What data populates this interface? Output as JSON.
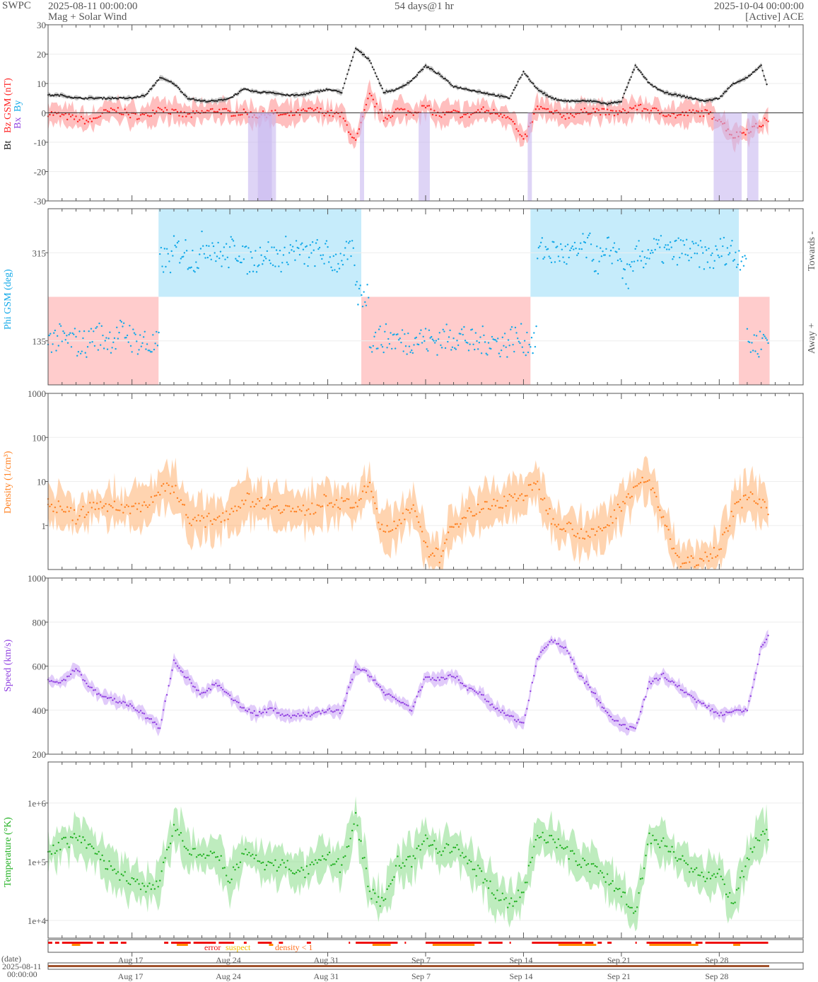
{
  "header": {
    "org": "SWPC",
    "start": "2025-08-11 00:00:00",
    "title": "Mag + Solar Wind",
    "span": "54 days@1 hr",
    "end": "2025-10-04 00:00:00",
    "source": "[Active] ACE"
  },
  "labels": {
    "bt": "Bt",
    "bz": "Bz GSM (nT)",
    "bx": "Bx",
    "by": "By",
    "phi": "Phi GSM (deg)",
    "towards": "Towards -",
    "away": "Away +",
    "density": "Density (1/cm³)",
    "speed": "Speed (km/s)",
    "temp": "Temperature (°K)"
  },
  "flags_legend": {
    "error": "error",
    "suspect": "suspect",
    "density": "density < 1"
  },
  "date_axis": {
    "label": "(date)",
    "start_date": "2025-08-11",
    "start_time": "00:00:00",
    "ticks": [
      "Aug 17",
      "Aug 24",
      "Aug 31",
      "Sep 7",
      "Sep 14",
      "Sep 21",
      "Sep 28"
    ],
    "tick_days": [
      6,
      13,
      20,
      27,
      34,
      41,
      48
    ]
  },
  "colors": {
    "bt": "#222222",
    "bz": "#ff2020",
    "phi": "#10a8e8",
    "density": "#ff8020",
    "speed": "#9040e0",
    "temp": "#20b020",
    "error": "#ee1111",
    "suspect": "#f0c000"
  },
  "chart_data": [
    {
      "type": "line",
      "name": "Bt / Bz GSM (nT)",
      "xunit": "days since 2025-08-11",
      "ylim": [
        -30,
        30
      ],
      "yticks": [
        "30",
        "20",
        "10",
        "0",
        "-10",
        "-20",
        "-30"
      ],
      "ytick_values": [
        30,
        20,
        10,
        0,
        -10,
        -20,
        -30
      ],
      "x": [
        0,
        1,
        2,
        3,
        4,
        5,
        6,
        7,
        8,
        9,
        10,
        11,
        12,
        13,
        14,
        15,
        16,
        17,
        18,
        19,
        20,
        21,
        22,
        23,
        24,
        25,
        26,
        27,
        28,
        29,
        30,
        31,
        32,
        33,
        34,
        35,
        36,
        37,
        38,
        39,
        40,
        41,
        42,
        43,
        44,
        45,
        46,
        47,
        48,
        49,
        50,
        51,
        51.5
      ],
      "series": [
        {
          "name": "Bt",
          "values": [
            6,
            6,
            5,
            5,
            5,
            5,
            5,
            6,
            12,
            10,
            5,
            4,
            4,
            5,
            8,
            7,
            7,
            6,
            6,
            7,
            8,
            7,
            22,
            18,
            7,
            8,
            11,
            16,
            13,
            9,
            8,
            7,
            6,
            5,
            14,
            8,
            5,
            4,
            4,
            4,
            3,
            4,
            16,
            10,
            7,
            6,
            5,
            4,
            5,
            10,
            12,
            16,
            8
          ]
        },
        {
          "name": "Bz",
          "values": [
            0,
            -1,
            -2,
            -3,
            0,
            1,
            -1,
            -1,
            2,
            0,
            -1,
            0,
            1,
            0,
            0,
            -1,
            0,
            -1,
            0,
            1,
            0,
            -1,
            -10,
            6,
            -2,
            1,
            0,
            2,
            -1,
            0,
            -1,
            1,
            0,
            -1,
            -10,
            2,
            0,
            -1,
            0,
            1,
            0,
            0,
            2,
            1,
            0,
            -1,
            0,
            0,
            -2,
            -8,
            -6,
            -4,
            -2
          ]
        }
      ]
    },
    {
      "type": "scatter",
      "name": "Phi GSM (deg)",
      "ylim": [
        45,
        405
      ],
      "yticks": [
        "315",
        "135"
      ],
      "ytick_values": [
        315,
        135
      ],
      "sectors": [
        {
          "from": 0,
          "to": 7.9,
          "side": "away"
        },
        {
          "from": 7.9,
          "to": 22.4,
          "side": "towards"
        },
        {
          "from": 22.4,
          "to": 34.5,
          "side": "away"
        },
        {
          "from": 34.5,
          "to": 49.4,
          "side": "towards"
        },
        {
          "from": 49.4,
          "to": 51.6,
          "side": "away"
        }
      ],
      "x": [
        0,
        1,
        2,
        3,
        4,
        5,
        6,
        7,
        8,
        9,
        10,
        11,
        12,
        13,
        14,
        15,
        16,
        17,
        18,
        19,
        20,
        21,
        22,
        23,
        24,
        25,
        26,
        27,
        28,
        29,
        30,
        31,
        32,
        33,
        34,
        35,
        36,
        37,
        38,
        39,
        40,
        41,
        42,
        43,
        44,
        45,
        46,
        47,
        48,
        49,
        50,
        51
      ],
      "values": [
        140,
        135,
        130,
        145,
        140,
        150,
        135,
        125,
        300,
        320,
        305,
        330,
        310,
        320,
        300,
        315,
        305,
        320,
        310,
        315,
        300,
        310,
        230,
        140,
        140,
        135,
        140,
        135,
        140,
        145,
        130,
        135,
        130,
        140,
        135,
        320,
        315,
        310,
        325,
        300,
        320,
        270,
        310,
        320,
        315,
        320,
        310,
        305,
        320,
        310,
        130,
        140
      ]
    },
    {
      "type": "line",
      "name": "Density (1/cm³)",
      "yscale": "log",
      "ylim": [
        0.1,
        1000
      ],
      "yticks": [
        "1000",
        "100",
        "10",
        "1"
      ],
      "ytick_values": [
        1000,
        100,
        10,
        1
      ],
      "x": [
        0,
        1,
        2,
        3,
        4,
        5,
        6,
        7,
        8,
        9,
        10,
        11,
        12,
        13,
        14,
        15,
        16,
        17,
        18,
        19,
        20,
        21,
        22,
        23,
        24,
        25,
        26,
        27,
        28,
        29,
        30,
        31,
        32,
        33,
        34,
        35,
        36,
        37,
        38,
        39,
        40,
        41,
        42,
        43,
        44,
        45,
        46,
        47,
        48,
        49,
        50,
        51,
        51.5
      ],
      "values": [
        3,
        2.5,
        1.5,
        2.5,
        3,
        2.5,
        2.5,
        3,
        6,
        8,
        1.5,
        1.2,
        1.5,
        2,
        4,
        3.5,
        3,
        2.5,
        2,
        2.5,
        4,
        3,
        3,
        8,
        0.6,
        1.2,
        3,
        0.3,
        0.2,
        1,
        2,
        2.5,
        3,
        4,
        5,
        8,
        1.5,
        1,
        0.7,
        0.6,
        1,
        3,
        8,
        10,
        1.5,
        0.15,
        0.15,
        0.2,
        0.3,
        2,
        5,
        3,
        2
      ]
    },
    {
      "type": "line",
      "name": "Speed (km/s)",
      "ylim": [
        200,
        1000
      ],
      "yticks": [
        "1000",
        "800",
        "600",
        "400",
        "200"
      ],
      "ytick_values": [
        1000,
        800,
        600,
        400,
        200
      ],
      "x": [
        0,
        1,
        2,
        3,
        4,
        5,
        6,
        7,
        8,
        9,
        10,
        11,
        12,
        13,
        14,
        15,
        16,
        17,
        18,
        19,
        20,
        21,
        22,
        23,
        24,
        25,
        26,
        27,
        28,
        29,
        30,
        31,
        32,
        33,
        34,
        35,
        36,
        37,
        38,
        39,
        40,
        41,
        42,
        43,
        44,
        45,
        46,
        47,
        48,
        49,
        50,
        51,
        51.5
      ],
      "values": [
        530,
        530,
        590,
        500,
        460,
        440,
        420,
        370,
        320,
        620,
        540,
        470,
        520,
        460,
        410,
        380,
        410,
        370,
        380,
        380,
        400,
        390,
        600,
        560,
        480,
        450,
        400,
        550,
        540,
        560,
        500,
        470,
        410,
        370,
        340,
        640,
        720,
        680,
        560,
        480,
        380,
        330,
        310,
        520,
        560,
        510,
        460,
        420,
        380,
        400,
        400,
        680,
        730
      ]
    },
    {
      "type": "line",
      "name": "Temperature (°K)",
      "yscale": "log",
      "ylim": [
        5000,
        5000000
      ],
      "yticks": [
        "1e+6",
        "1e+5",
        "1e+4"
      ],
      "ytick_values": [
        1000000,
        100000,
        10000
      ],
      "x": [
        0,
        1,
        2,
        3,
        4,
        5,
        6,
        7,
        8,
        9,
        10,
        11,
        12,
        13,
        14,
        15,
        16,
        17,
        18,
        19,
        20,
        21,
        22,
        23,
        24,
        25,
        26,
        27,
        28,
        29,
        30,
        31,
        32,
        33,
        34,
        35,
        36,
        37,
        38,
        39,
        40,
        41,
        42,
        43,
        44,
        45,
        46,
        47,
        48,
        49,
        50,
        51,
        51.5
      ],
      "values": [
        150000,
        200000,
        250000,
        180000,
        100000,
        60000,
        50000,
        30000,
        50000,
        400000,
        150000,
        120000,
        150000,
        50000,
        150000,
        100000,
        80000,
        100000,
        60000,
        80000,
        120000,
        80000,
        600000,
        30000,
        20000,
        100000,
        100000,
        250000,
        150000,
        180000,
        100000,
        60000,
        30000,
        20000,
        30000,
        300000,
        250000,
        150000,
        100000,
        80000,
        50000,
        30000,
        15000,
        250000,
        200000,
        130000,
        80000,
        50000,
        60000,
        20000,
        100000,
        300000,
        300000
      ]
    },
    {
      "type": "table",
      "name": "quality flags",
      "error_ranges": [
        [
          0,
          0.3
        ],
        [
          0.5,
          0.8
        ],
        [
          1,
          3.2
        ],
        [
          3.5,
          4
        ],
        [
          4.4,
          5
        ],
        [
          5.2,
          5.6
        ],
        [
          8.3,
          8.6
        ],
        [
          8.8,
          10.2
        ],
        [
          10.4,
          12
        ],
        [
          12.2,
          13.3
        ],
        [
          14,
          14.2
        ],
        [
          15,
          16
        ],
        [
          16.5,
          16.8
        ],
        [
          18.5,
          18.8
        ],
        [
          21.5,
          21.6
        ],
        [
          22,
          25
        ],
        [
          25.5,
          25.6
        ],
        [
          27,
          31
        ],
        [
          31.5,
          32.5
        ],
        [
          33,
          33.1
        ],
        [
          34.6,
          38.2
        ],
        [
          38.4,
          39
        ],
        [
          39.3,
          39.6
        ],
        [
          40,
          40.3
        ],
        [
          42,
          42.1
        ],
        [
          42.8,
          46
        ],
        [
          46.3,
          46.8
        ],
        [
          47,
          51.5
        ]
      ],
      "suspect_ranges": [
        [
          1.7,
          2.3
        ],
        [
          9.2,
          10
        ],
        [
          15.8,
          16.1
        ],
        [
          23.2,
          24.5
        ],
        [
          27.5,
          30.5
        ],
        [
          36.5,
          39.2
        ],
        [
          43,
          46.5
        ],
        [
          49,
          49.5
        ]
      ]
    }
  ]
}
